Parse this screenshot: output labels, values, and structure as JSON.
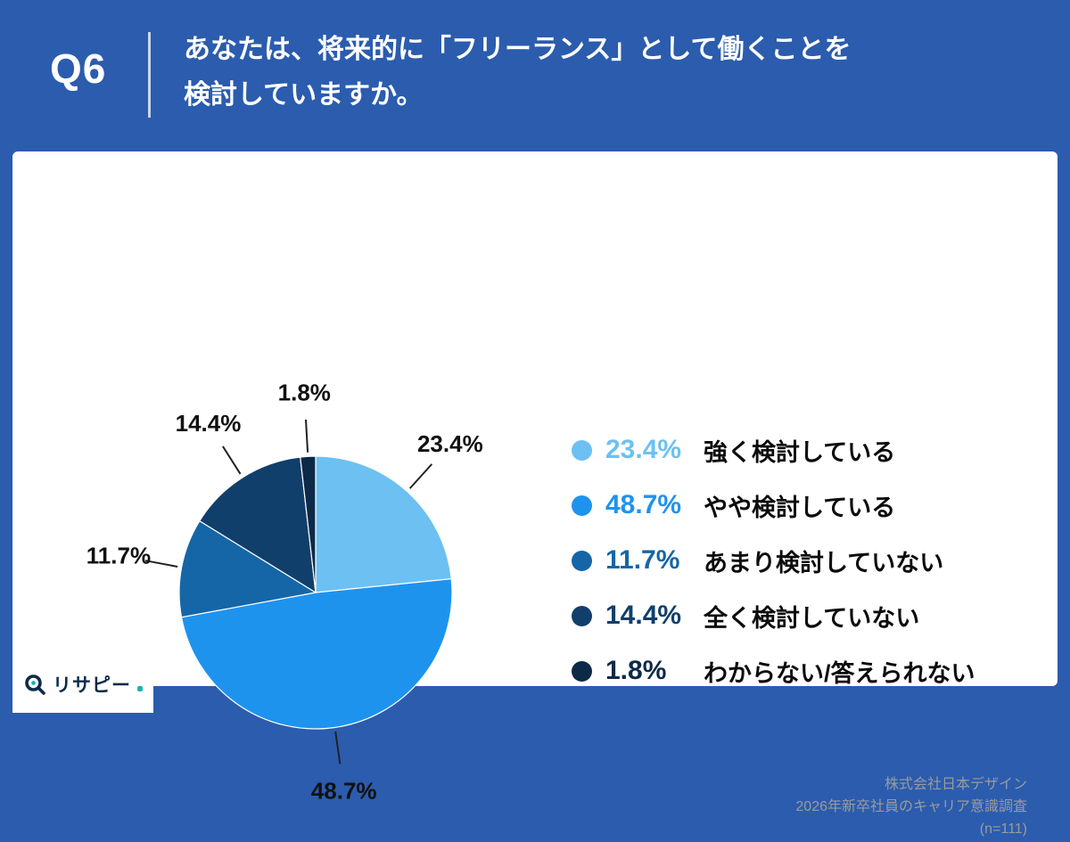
{
  "header": {
    "question_number": "Q6",
    "question_line1": "あなたは、将来的に「フリーランス」として働くことを",
    "question_line2": "検討していますか。"
  },
  "chart_data": {
    "type": "pie",
    "title": "あなたは、将来的に「フリーランス」として働くことを検討していますか。",
    "start_angle_deg": 0,
    "direction": "clockwise",
    "legend_position": "right",
    "slices": [
      {
        "label": "強く検討している",
        "value": 23.4,
        "display": "23.4%",
        "color": "#6DC0F2"
      },
      {
        "label": "やや検討している",
        "value": 48.7,
        "display": "48.7%",
        "color": "#1E93EE"
      },
      {
        "label": "あまり検討していない",
        "value": 11.7,
        "display": "11.7%",
        "color": "#1566A6"
      },
      {
        "label": "全く検討していない",
        "value": 14.4,
        "display": "14.4%",
        "color": "#113F6B"
      },
      {
        "label": "わからない/答えられない",
        "value": 1.8,
        "display": "1.8%",
        "color": "#0C2A47"
      }
    ]
  },
  "footer": {
    "company": "株式会社日本デザイン",
    "survey": "2026年新卒社員のキャリア意識調査",
    "sample": "(n=111)"
  },
  "logo": {
    "text": "リサピー"
  }
}
